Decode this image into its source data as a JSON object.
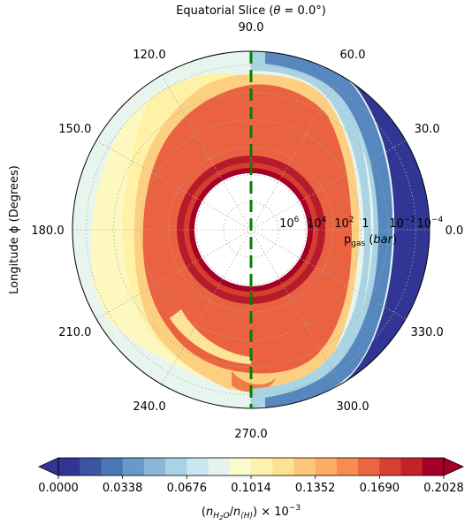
{
  "chart_data": {
    "type": "heatmap",
    "projection": "polar",
    "title_prefix": "Equatorial Slice (",
    "title_theta": "θ",
    "title_suffix": "  =  0.0°)",
    "ylabel": "Longitude ϕ (Degrees)",
    "angle_ticks": [
      {
        "deg": 0,
        "label": "0.0"
      },
      {
        "deg": 30,
        "label": "30.0"
      },
      {
        "deg": 60,
        "label": "60.0"
      },
      {
        "deg": 90,
        "label": "90.0"
      },
      {
        "deg": 120,
        "label": "120.0"
      },
      {
        "deg": 150,
        "label": "150.0"
      },
      {
        "deg": 180,
        "label": "180.0"
      },
      {
        "deg": 210,
        "label": "210.0"
      },
      {
        "deg": 240,
        "label": "240.0"
      },
      {
        "deg": 270,
        "label": "270.0"
      },
      {
        "deg": 300,
        "label": "300.0"
      },
      {
        "deg": 330,
        "label": "330.0"
      }
    ],
    "radial_axis": {
      "quantity": "p_gas",
      "unit": "bar",
      "scale": "log",
      "direction": "decreasing outward",
      "range_log10": [
        8,
        -5
      ],
      "inner_boundary_log10": 6.8,
      "tick_labels": [
        {
          "log10": 6,
          "base": "10",
          "exp": "6"
        },
        {
          "log10": 4,
          "base": "10",
          "exp": "4"
        },
        {
          "log10": 2,
          "base": "10",
          "exp": "2"
        },
        {
          "log10": 0,
          "base": "1",
          "exp": ""
        },
        {
          "log10": -2,
          "base": "10",
          "exp": "−2"
        },
        {
          "log10": -4,
          "base": "10",
          "exp": "−4"
        }
      ],
      "label_main": "p",
      "label_sub": "gas",
      "label_unit": "bar"
    },
    "terminator_line": {
      "angles_deg": [
        90,
        270
      ],
      "color": "#008000",
      "style": "dashed"
    },
    "colorbar": {
      "colors": [
        "#313695",
        "#3b55a3",
        "#4a78b6",
        "#6999c6",
        "#8bb8d8",
        "#abd3e6",
        "#c9e7f0",
        "#e5f4f0",
        "#f8fccc",
        "#fff2ac",
        "#fee293",
        "#fdc779",
        "#fcac64",
        "#f78c51",
        "#ea6542",
        "#d73f30",
        "#c1232b",
        "#a50026"
      ],
      "boundaries": [
        0.0,
        0.0338,
        0.0676,
        0.1014,
        0.1352,
        0.169,
        0.2028
      ],
      "tick_labels": [
        "0.0000",
        "0.0338",
        "0.0676",
        "0.1014",
        "0.1352",
        "0.1690",
        "0.2028"
      ],
      "label": "(n_H2O / n_⟨H⟩) × 10^−3",
      "extend": "both"
    },
    "field_description_values": {
      "deep_layer_min": 0.2028,
      "dayside_interior": 0.185,
      "nightside_interior": 0.185,
      "limb_west": 0.11,
      "nightside_upper": 0.08,
      "dayside_upper": 0.0
    }
  }
}
